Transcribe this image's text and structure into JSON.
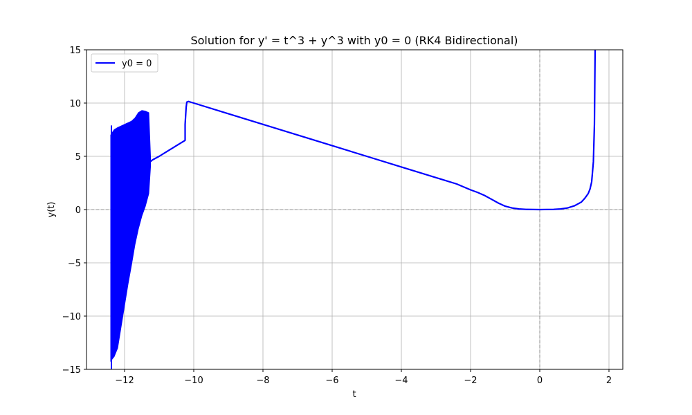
{
  "chart_data": {
    "type": "line",
    "title": "Solution for y' = t^3 + y^3 with y0 = 0 (RK4 Bidirectional)",
    "xlabel": "t",
    "ylabel": "y(t)",
    "xlim": [
      -13.1,
      2.4
    ],
    "ylim": [
      -15,
      15
    ],
    "xticks": [
      -12,
      -10,
      -8,
      -6,
      -4,
      -2,
      0,
      2
    ],
    "yticks": [
      -15,
      -10,
      -5,
      0,
      5,
      10,
      15
    ],
    "xtick_labels": [
      "−12",
      "−10",
      "−8",
      "−6",
      "−4",
      "−2",
      "0",
      "2"
    ],
    "ytick_labels": [
      "−15",
      "−10",
      "−5",
      "0",
      "5",
      "10",
      "15"
    ],
    "grid": true,
    "reference_lines": {
      "x": 0,
      "y": 0
    },
    "legend": {
      "position": "top-left",
      "entries": [
        "y0 = 0"
      ]
    },
    "colors": {
      "series": "#0000ff",
      "grid": "#b0b0b0",
      "reference": "#808080"
    },
    "series": [
      {
        "name": "y0 = 0",
        "x": [
          1.6,
          1.58,
          1.55,
          1.5,
          1.45,
          1.4,
          1.3,
          1.2,
          1.0,
          0.8,
          0.6,
          0.4,
          0.0,
          -0.4,
          -0.6,
          -0.8,
          -1.0,
          -1.2,
          -1.4,
          -1.6,
          -1.8,
          -2.0,
          -2.4,
          -3.0,
          -4.0,
          -5.0,
          -6.0,
          -7.0,
          -8.0,
          -9.0,
          -10.0,
          -10.1,
          -10.15,
          -10.2,
          -10.22,
          -10.25,
          -10.25,
          -10.5,
          -10.8,
          -11.0,
          -11.2,
          -11.25
        ],
        "y": [
          15.0,
          8.0,
          4.5,
          2.6,
          1.9,
          1.5,
          1.05,
          0.7,
          0.35,
          0.15,
          0.06,
          0.02,
          0.0,
          0.02,
          0.06,
          0.15,
          0.32,
          0.62,
          0.98,
          1.33,
          1.62,
          1.85,
          2.4,
          3.0,
          4.0,
          5.0,
          6.0,
          7.0,
          8.0,
          9.0,
          10.0,
          10.1,
          10.15,
          10.1,
          9.6,
          8.0,
          6.5,
          6.0,
          5.4,
          5.0,
          4.65,
          4.5
        ]
      }
    ],
    "oscillation_band": {
      "x_range": [
        -12.4,
        -11.25
      ],
      "upper": {
        "x": [
          -12.4,
          -12.3,
          -12.2,
          -12.0,
          -11.8,
          -11.7,
          -11.6,
          -11.5,
          -11.4,
          -11.3,
          -11.25
        ],
        "y": [
          7.0,
          7.5,
          7.7,
          8.0,
          8.3,
          8.6,
          9.1,
          9.3,
          9.25,
          9.1,
          5.0
        ]
      },
      "lower": {
        "x": [
          -12.4,
          -12.3,
          -12.2,
          -12.1,
          -12.0,
          -11.9,
          -11.8,
          -11.7,
          -11.6,
          -11.5,
          -11.4,
          -11.3,
          -11.25
        ],
        "y": [
          -14.2,
          -13.8,
          -13.0,
          -11.0,
          -9.0,
          -7.0,
          -5.2,
          -3.3,
          -1.8,
          -0.6,
          0.3,
          1.5,
          4.0
        ]
      },
      "spike": {
        "x": -12.38,
        "y_top": 7.9,
        "y_bottom": -15
      }
    }
  }
}
